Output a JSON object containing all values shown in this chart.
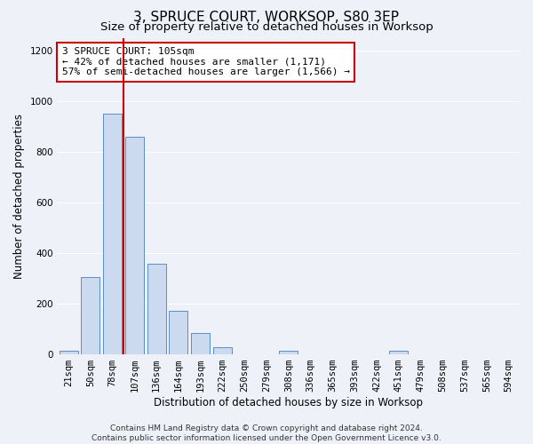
{
  "title": "3, SPRUCE COURT, WORKSOP, S80 3EP",
  "subtitle": "Size of property relative to detached houses in Worksop",
  "xlabel": "Distribution of detached houses by size in Worksop",
  "ylabel": "Number of detached properties",
  "categories": [
    "21sqm",
    "50sqm",
    "78sqm",
    "107sqm",
    "136sqm",
    "164sqm",
    "193sqm",
    "222sqm",
    "250sqm",
    "279sqm",
    "308sqm",
    "336sqm",
    "365sqm",
    "393sqm",
    "422sqm",
    "451sqm",
    "479sqm",
    "508sqm",
    "537sqm",
    "565sqm",
    "594sqm"
  ],
  "bar_heights": [
    13,
    305,
    950,
    860,
    358,
    172,
    83,
    28,
    0,
    0,
    13,
    0,
    0,
    0,
    0,
    13,
    0,
    0,
    0,
    0,
    0
  ],
  "bar_color": "#ccdaf0",
  "bar_edge_color": "#5b8dc8",
  "vline_x_index": 2,
  "vline_color": "#cc0000",
  "ylim": [
    0,
    1250
  ],
  "yticks": [
    0,
    200,
    400,
    600,
    800,
    1000,
    1200
  ],
  "annotation_text": "3 SPRUCE COURT: 105sqm\n← 42% of detached houses are smaller (1,171)\n57% of semi-detached houses are larger (1,566) →",
  "annotation_box_color": "#ffffff",
  "annotation_box_edge": "#cc0000",
  "footer_line1": "Contains HM Land Registry data © Crown copyright and database right 2024.",
  "footer_line2": "Contains public sector information licensed under the Open Government Licence v3.0.",
  "background_color": "#eef2f8",
  "grid_color": "#ffffff",
  "title_fontsize": 11,
  "subtitle_fontsize": 9.5,
  "axis_label_fontsize": 8.5,
  "tick_fontsize": 7.5,
  "annotation_fontsize": 8,
  "footer_fontsize": 6.5
}
